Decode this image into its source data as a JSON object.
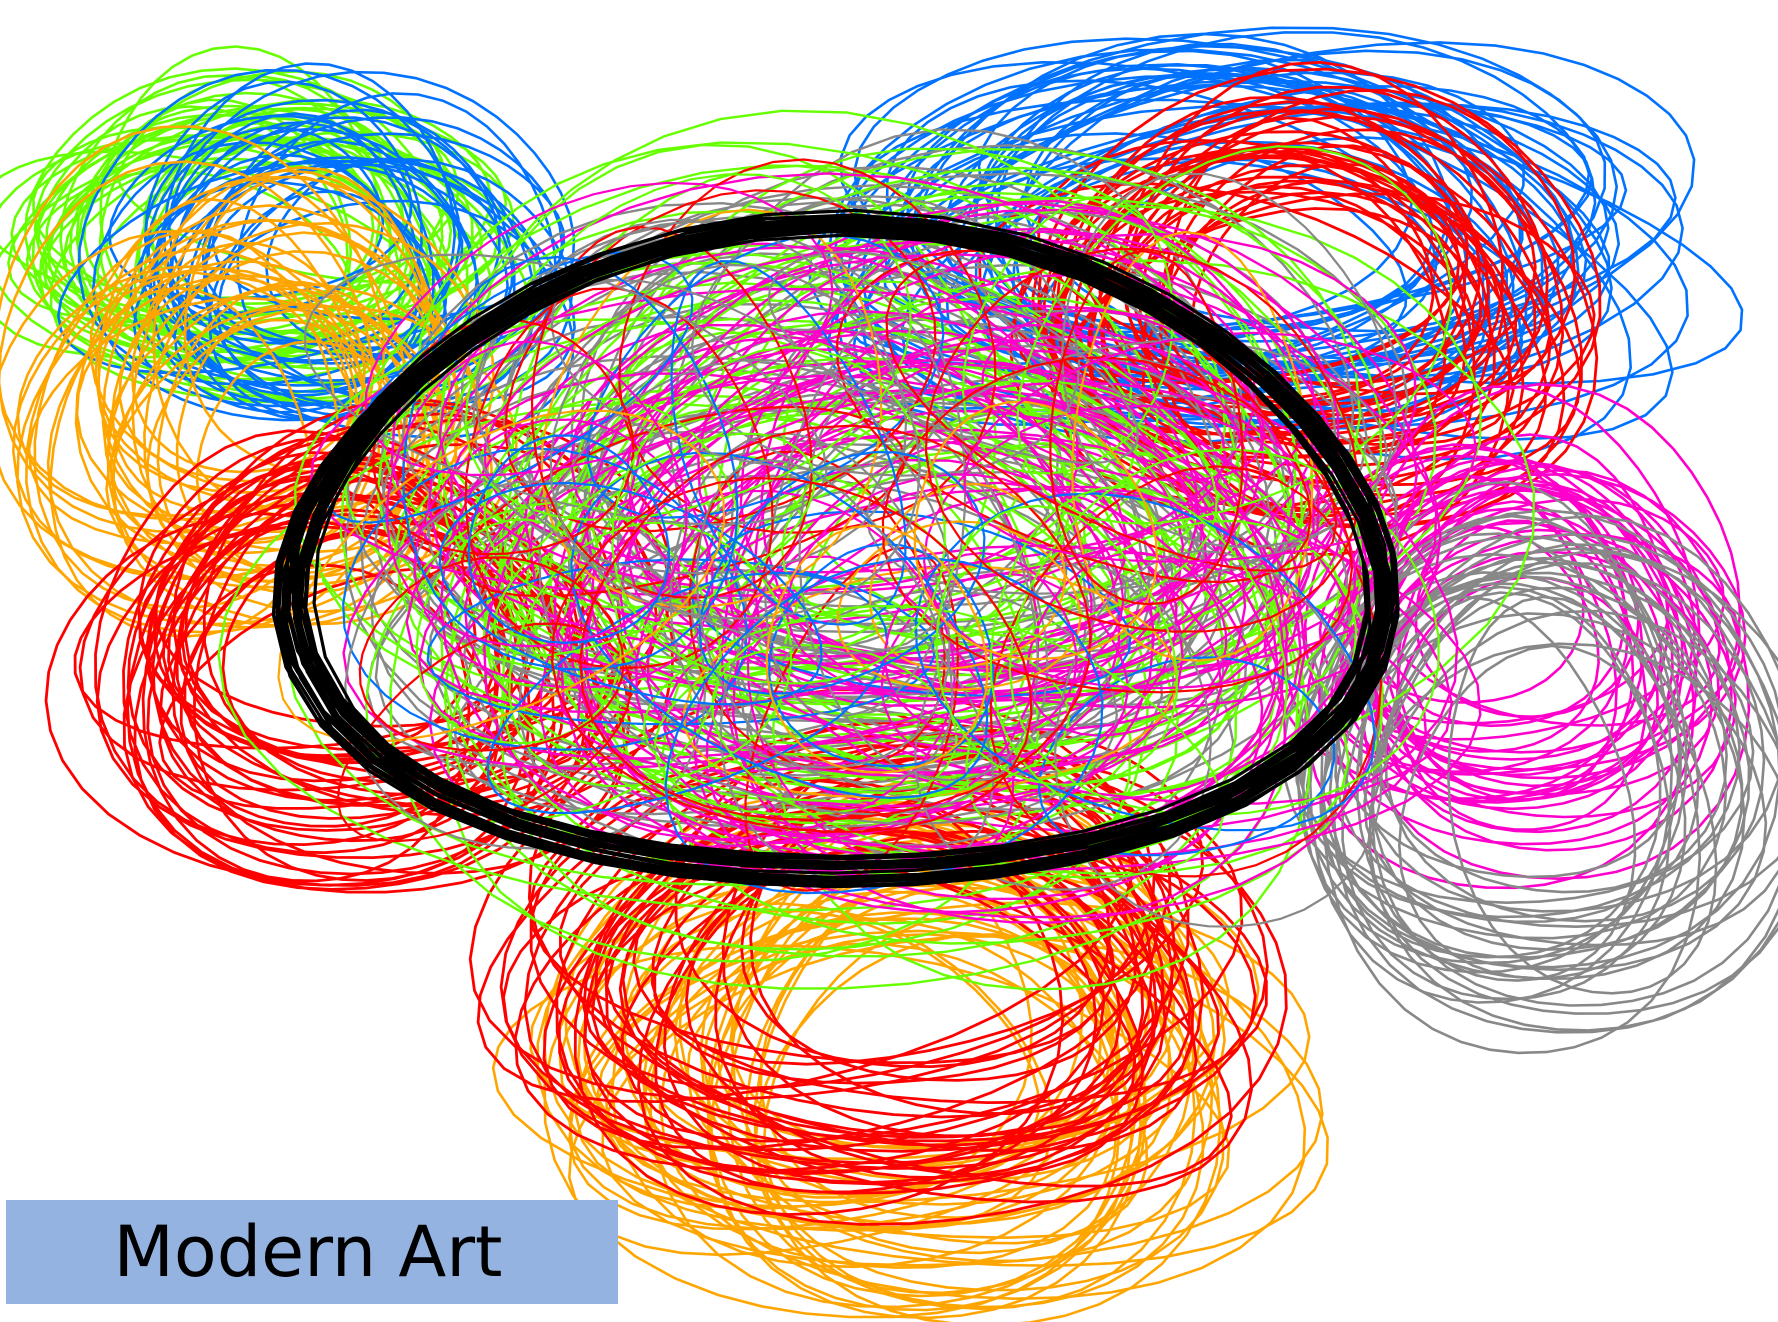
{
  "caption": "Modern Art",
  "caption_background": "#95b3e1",
  "caption_text_color": "#000000",
  "background_color": "#ffffff",
  "scribble_clusters": [
    {
      "name": "green-loops-top-left",
      "color": "#66ff00"
    },
    {
      "name": "blue-loops-top-left",
      "color": "#0072ff"
    },
    {
      "name": "orange-loops-left",
      "color": "#ffa500"
    },
    {
      "name": "blue-loops-top-right",
      "color": "#0072ff"
    },
    {
      "name": "red-loops-top-right",
      "color": "#ff0000"
    },
    {
      "name": "magenta-loops-right",
      "color": "#ff00cc"
    },
    {
      "name": "gray-loops-right",
      "color": "#888888"
    },
    {
      "name": "red-loops-left",
      "color": "#ff0000"
    },
    {
      "name": "orange-loops-bottom",
      "color": "#ffa500"
    },
    {
      "name": "red-loops-bottom",
      "color": "#ff0000"
    },
    {
      "name": "gray-loops-center",
      "color": "#888888"
    },
    {
      "name": "green-loops-center",
      "color": "#66ff00"
    },
    {
      "name": "magenta-loops-center",
      "color": "#ff00cc"
    },
    {
      "name": "black-ring-center",
      "color": "#000000"
    }
  ]
}
